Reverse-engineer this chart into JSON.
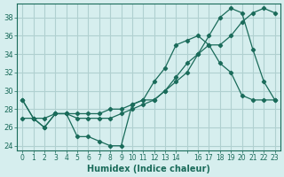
{
  "xlabel": "Humidex (Indice chaleur)",
  "ylabel": "",
  "bg_color": "#d6eeee",
  "grid_color": "#b0d0d0",
  "line_color": "#1a6b5a",
  "xlim": [
    -0.5,
    23.5
  ],
  "ylim": [
    23.5,
    39.5
  ],
  "yticks": [
    24,
    26,
    28,
    30,
    32,
    34,
    36,
    38
  ],
  "xticks": [
    0,
    1,
    2,
    3,
    4,
    5,
    6,
    7,
    8,
    9,
    10,
    11,
    12,
    13,
    14,
    15,
    16,
    17,
    18,
    19,
    20,
    21,
    22,
    23
  ],
  "xtick_labels": [
    "0",
    "1",
    "2",
    "3",
    "4",
    "5",
    "6",
    "7",
    "8",
    "9",
    "10",
    "11",
    "12",
    "13",
    "14",
    "",
    "16",
    "17",
    "18",
    "19",
    "20",
    "21",
    "22",
    "23"
  ],
  "line1_x": [
    0,
    1,
    2,
    3,
    4,
    5,
    6,
    7,
    8,
    9,
    10,
    11,
    12,
    13,
    14,
    15,
    16,
    17,
    18,
    19,
    20,
    21,
    22,
    23
  ],
  "line1_y": [
    29,
    27,
    26,
    27.5,
    27.5,
    25,
    25,
    24.5,
    24,
    24,
    28.5,
    29,
    31,
    32.5,
    35,
    35.5,
    36,
    35,
    33,
    32,
    29.5,
    29,
    29,
    29
  ],
  "line2_x": [
    0,
    1,
    2,
    3,
    4,
    5,
    6,
    7,
    8,
    9,
    10,
    11,
    12,
    13,
    14,
    15,
    16,
    17,
    18,
    19,
    20,
    21,
    22,
    23
  ],
  "line2_y": [
    29,
    27,
    26,
    27.5,
    27.5,
    27,
    27,
    27,
    27,
    27.5,
    28,
    28.5,
    29,
    30,
    31.5,
    33,
    34,
    35,
    35,
    36,
    37.5,
    38.5,
    39,
    38.5
  ],
  "line3_x": [
    0,
    1,
    2,
    3,
    4,
    5,
    6,
    7,
    8,
    9,
    10,
    11,
    12,
    13,
    14,
    15,
    16,
    17,
    18,
    19,
    20,
    21,
    22,
    23
  ],
  "line3_y": [
    27,
    27,
    27,
    27.5,
    27.5,
    27.5,
    27.5,
    27.5,
    28,
    28,
    28.5,
    29,
    29,
    30,
    31,
    32,
    34,
    36,
    38,
    39,
    38.5,
    34.5,
    31,
    29
  ]
}
